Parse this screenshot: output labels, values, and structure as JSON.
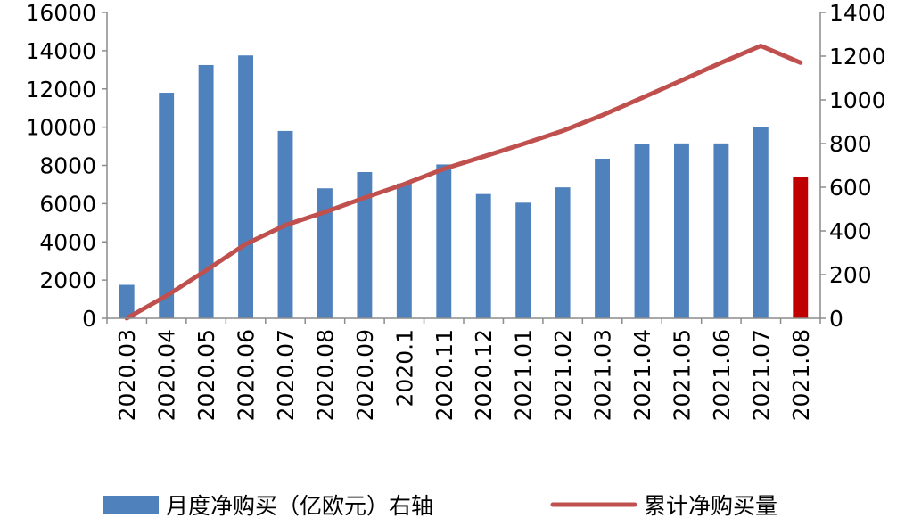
{
  "chart_data": {
    "type": "bar",
    "title": "",
    "categories": [
      "2020.03",
      "2020.04",
      "2020.05",
      "2020.06",
      "2020.07",
      "2020.08",
      "2020.09",
      "2020.1",
      "2020.11",
      "2020.12",
      "2021.01",
      "2021.02",
      "2021.03",
      "2021.04",
      "2021.05",
      "2021.06",
      "2021.07",
      "2021.08"
    ],
    "series": [
      {
        "name": "月度净购买（亿欧元）右轴",
        "type": "bar",
        "axis": "left",
        "color": "#4F81BD",
        "highlight_last_color": "#C00000",
        "values": [
          1750,
          11800,
          13250,
          13750,
          9800,
          6800,
          7650,
          7050,
          8050,
          6500,
          6050,
          6850,
          8350,
          9100,
          9150,
          9150,
          10000,
          7400
        ]
      },
      {
        "name": "累计净购买量",
        "type": "line",
        "axis": "right",
        "color": "#C0504D",
        "values": [
          0,
          103,
          219,
          340,
          426,
          486,
          552,
          614,
          684,
          740,
          798,
          858,
          930,
          1009,
          1089,
          1170,
          1247,
          1170
        ]
      }
    ],
    "y_left": {
      "min": 0,
      "max": 16000,
      "ticks": [
        "0",
        "2000",
        "4000",
        "6000",
        "8000",
        "10000",
        "12000",
        "14000",
        "16000"
      ]
    },
    "y_right": {
      "min": 0,
      "max": 1400,
      "ticks": [
        "0",
        "200",
        "400",
        "600",
        "800",
        "1000",
        "1200",
        "1400"
      ]
    },
    "grid": false,
    "legend": "bottom"
  }
}
